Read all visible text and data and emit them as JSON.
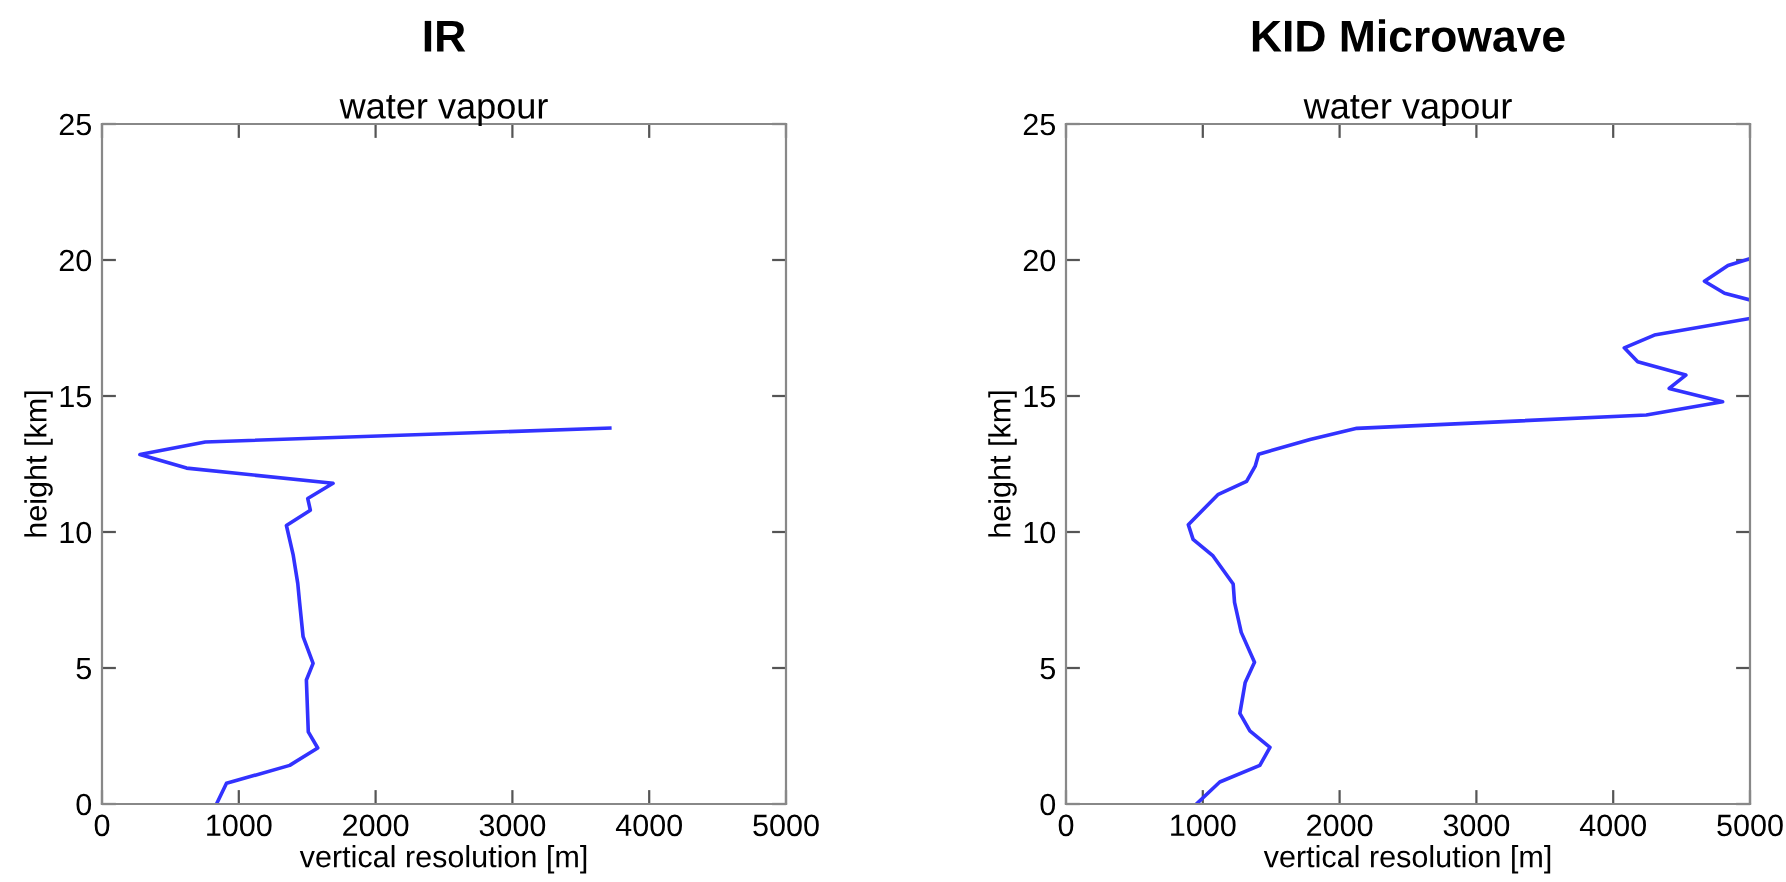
{
  "chart_data": [
    {
      "type": "line",
      "title": "IR",
      "subtitle": "water vapour",
      "xlabel": "vertical resolution [m]",
      "ylabel": "height [km]",
      "xlim": [
        0,
        5000
      ],
      "ylim": [
        0,
        25
      ],
      "xticks": [
        0,
        1000,
        2000,
        3000,
        4000,
        5000
      ],
      "yticks": [
        0,
        5,
        10,
        15,
        20,
        25
      ],
      "grid": false,
      "series": [
        {
          "color": "#3232ff",
          "x": [
            837,
            910,
            1372,
            1577,
            1508,
            1494,
            1543,
            1470,
            1445,
            1431,
            1397,
            1348,
            1523,
            1504,
            1689,
            618,
            277,
            755,
            3712
          ],
          "values": [
            0,
            0.76,
            1.42,
            2.06,
            2.65,
            4.56,
            5.17,
            6.15,
            7.38,
            8.11,
            9.17,
            10.24,
            10.8,
            11.23,
            11.79,
            12.35,
            12.85,
            13.31,
            13.82
          ]
        }
      ]
    },
    {
      "type": "line",
      "title": "KID Microwave",
      "subtitle": "water vapour",
      "xlabel": "vertical resolution [m]",
      "ylabel": "height [km]",
      "xlim": [
        0,
        5000
      ],
      "ylim": [
        0,
        25
      ],
      "xticks": [
        0,
        1000,
        2000,
        3000,
        4000,
        5000
      ],
      "yticks": [
        0,
        5,
        10,
        15,
        20,
        25
      ],
      "grid": false,
      "series": [
        {
          "color": "#3232ff",
          "x": [
            953,
            1124,
            1417,
            1491,
            1344,
            1271,
            1310,
            1378,
            1281,
            1232,
            1222,
            1075,
            929,
            894,
            1110,
            1320,
            1383,
            1408,
            1784,
            2126,
            4242,
            4800,
            4409,
            4531,
            4179,
            4081,
            4301,
            5000,
            null,
            5000,
            4814,
            4667,
            4839,
            5000
          ],
          "values": [
            0,
            0.81,
            1.42,
            2.08,
            2.69,
            3.33,
            4.47,
            5.21,
            6.31,
            7.41,
            8.09,
            9.12,
            9.73,
            10.27,
            11.37,
            11.86,
            12.42,
            12.86,
            13.4,
            13.81,
            14.3,
            14.79,
            15.28,
            15.77,
            16.26,
            16.77,
            17.24,
            17.85,
            null,
            18.53,
            18.78,
            19.22,
            19.8,
            20.05
          ]
        }
      ]
    }
  ]
}
